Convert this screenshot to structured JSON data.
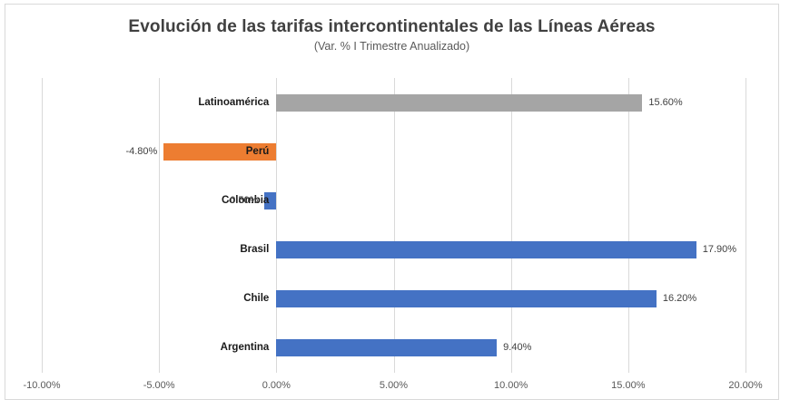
{
  "title": "Evolución de las tarifas intercontinentales de las Líneas Aéreas",
  "subtitle": "(Var. % I Trimestre Anualizado)",
  "chart_data": {
    "type": "bar",
    "orientation": "horizontal",
    "categories": [
      "Latinoamérica",
      "Perú",
      "Colombia",
      "Brasil",
      "Chile",
      "Argentina"
    ],
    "values": [
      15.6,
      -4.8,
      -0.5,
      17.9,
      16.2,
      9.4
    ],
    "value_labels": [
      "15.60%",
      "-4.80%",
      "-0.50%",
      "17.90%",
      "16.20%",
      "9.40%"
    ],
    "bar_colors": [
      "#A5A5A5",
      "#ED7D31",
      "#4472C4",
      "#4472C4",
      "#4472C4",
      "#4472C4"
    ],
    "xlim": [
      -10,
      20
    ],
    "x_tick_values": [
      -10,
      -5,
      0,
      5,
      10,
      15,
      20
    ],
    "x_tick_labels": [
      "-10.00%",
      "-5.00%",
      "0.00%",
      "5.00%",
      "10.00%",
      "15.00%",
      "20.00%"
    ],
    "grid": true,
    "legend": false,
    "title": "Evolución de las tarifas intercontinentales de las Líneas Aéreas",
    "subtitle": "(Var. % I Trimestre Anualizado)"
  },
  "colors": {
    "frame_border": "#d9d9d9",
    "gridline": "#d9d9d9",
    "title_color": "#404040",
    "subtitle_color": "#595959",
    "axis_text": "#595959",
    "value_text": "#404040",
    "category_text": "#1a1a1a"
  }
}
